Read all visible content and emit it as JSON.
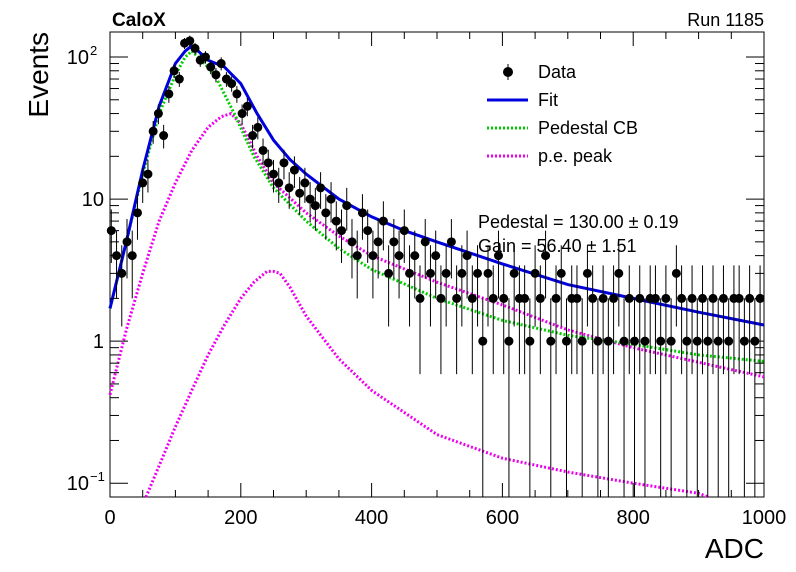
{
  "header": {
    "experiment": "CaloX",
    "run_label": "Run 1185"
  },
  "stats": {
    "pedestal": "Pedestal = 130.00 ± 0.19",
    "gain": "Gain = 56.40 ± 1.51"
  },
  "chart_data": {
    "type": "scatter",
    "xlabel": "ADC",
    "ylabel": "Events",
    "xlim": [
      0,
      1000
    ],
    "ylim": [
      0.08,
      150
    ],
    "y_scale": "log",
    "x_ticks": [
      0,
      200,
      400,
      600,
      800,
      1000
    ],
    "y_ticks": [
      {
        "value": 0.1,
        "label": "10",
        "exp": "−1"
      },
      {
        "value": 1,
        "label": "1",
        "exp": ""
      },
      {
        "value": 10,
        "label": "10",
        "exp": ""
      },
      {
        "value": 100,
        "label": "10",
        "exp": "2"
      }
    ],
    "legend_position": "top-right",
    "legend": [
      {
        "label": "Data",
        "style": "marker",
        "color": "#000000"
      },
      {
        "label": "Fit",
        "style": "solid",
        "color": "#0000dd"
      },
      {
        "label": "Pedestal CB",
        "style": "dotted",
        "color": "#00cc00"
      },
      {
        "label": "p.e. peak",
        "style": "dotted",
        "color": "#ee00ee"
      }
    ],
    "data": {
      "x": [
        2,
        10,
        18,
        26,
        34,
        42,
        50,
        58,
        66,
        74,
        82,
        90,
        98,
        106,
        114,
        122,
        130,
        138,
        146,
        154,
        162,
        170,
        178,
        186,
        194,
        202,
        210,
        218,
        226,
        234,
        242,
        250,
        258,
        266,
        274,
        282,
        290,
        298,
        306,
        314,
        322,
        330,
        338,
        346,
        354,
        362,
        370,
        378,
        386,
        394,
        402,
        410,
        418,
        426,
        434,
        442,
        450,
        458,
        466,
        474,
        482,
        490,
        498,
        506,
        514,
        522,
        530,
        538,
        546,
        554,
        562,
        570,
        578,
        586,
        594,
        602,
        610,
        618,
        626,
        634,
        642,
        650,
        658,
        666,
        674,
        682,
        690,
        698,
        706,
        714,
        722,
        730,
        738,
        746,
        754,
        762,
        770,
        778,
        786,
        794,
        802,
        810,
        818,
        826,
        834,
        842,
        850,
        858,
        866,
        874,
        882,
        890,
        898,
        906,
        914,
        922,
        930,
        938,
        946,
        954,
        962,
        970,
        978,
        986,
        994
      ],
      "y": [
        6,
        4,
        3,
        5,
        4,
        8,
        13,
        15,
        30,
        40,
        28,
        55,
        80,
        70,
        125,
        130,
        115,
        95,
        100,
        85,
        75,
        90,
        70,
        65,
        55,
        40,
        45,
        28,
        32,
        22,
        18,
        15,
        13,
        18,
        12,
        16,
        11,
        13,
        10,
        9,
        12,
        8,
        10,
        7,
        6,
        9,
        5,
        4,
        8,
        6,
        4,
        5,
        7,
        3,
        5,
        4,
        6,
        3,
        4,
        2,
        5,
        3,
        4,
        2,
        3,
        5,
        2,
        3,
        4,
        2,
        3,
        1,
        3,
        2,
        4,
        2,
        1,
        3,
        2,
        2,
        1,
        3,
        2,
        4,
        1,
        2,
        3,
        1,
        2,
        2,
        1,
        3,
        2,
        1,
        2,
        1,
        2,
        3,
        1,
        2,
        1,
        2,
        1,
        2,
        2,
        1,
        2,
        1,
        3,
        2,
        1,
        2,
        1,
        2,
        1,
        2,
        1,
        2,
        1,
        2,
        2,
        1,
        2,
        1,
        2
      ]
    },
    "fit": {
      "x": [
        0,
        25,
        50,
        75,
        100,
        115,
        125,
        135,
        150,
        175,
        200,
        225,
        250,
        275,
        300,
        350,
        400,
        450,
        500,
        600,
        700,
        800,
        900,
        1000
      ],
      "y": [
        1.7,
        5,
        16,
        45,
        90,
        110,
        120,
        110,
        95,
        85,
        65,
        40,
        26,
        19,
        15,
        10,
        7.5,
        6,
        5,
        3.5,
        2.5,
        2,
        1.6,
        1.3
      ]
    },
    "pedestal_cb": {
      "x": [
        0,
        25,
        50,
        75,
        100,
        115,
        125,
        140,
        160,
        190,
        220,
        250,
        300,
        350,
        400,
        500,
        600,
        700,
        800,
        900,
        1000
      ],
      "y": [
        1.7,
        5,
        15,
        40,
        75,
        100,
        110,
        95,
        75,
        40,
        20,
        12,
        7,
        4.5,
        3.2,
        2,
        1.4,
        1.1,
        0.95,
        0.8,
        0.72
      ]
    },
    "pe_peak_main": {
      "x": [
        0,
        25,
        50,
        75,
        100,
        125,
        150,
        170,
        185,
        200,
        225,
        250,
        300,
        350,
        400,
        500,
        600,
        700,
        800,
        1000
      ],
      "y": [
        0.42,
        1.2,
        3,
        7,
        13,
        22,
        32,
        38,
        40,
        34,
        20,
        13,
        8,
        5.5,
        4,
        2.6,
        1.8,
        1.2,
        0.9,
        0.56
      ]
    },
    "pe_peak_second": {
      "x": [
        55,
        80,
        100,
        125,
        150,
        175,
        200,
        220,
        240,
        250,
        260,
        275,
        300,
        350,
        400,
        500,
        600,
        700,
        800,
        900,
        915
      ],
      "y": [
        0.08,
        0.15,
        0.25,
        0.45,
        0.8,
        1.3,
        2,
        2.6,
        3.1,
        3.1,
        3,
        2.4,
        1.5,
        0.75,
        0.45,
        0.22,
        0.15,
        0.12,
        0.1,
        0.085,
        0.08
      ]
    }
  }
}
